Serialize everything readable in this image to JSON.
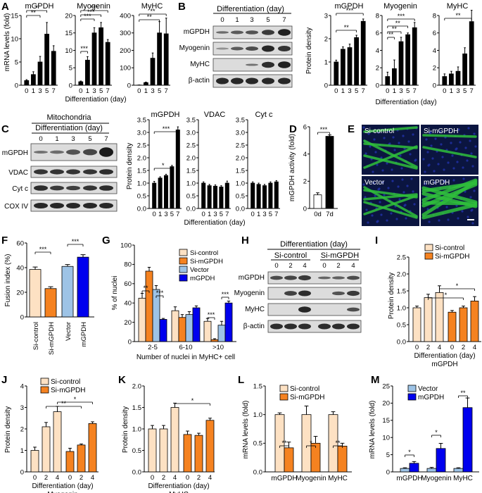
{
  "colors": {
    "black_bar": "#000000",
    "si_control": "#fde1c3",
    "si_mgpdh": "#f58220",
    "vector": "#9dc3e6",
    "mgpdh_over": "#0000ee",
    "micro_green": "#2fbf3b",
    "micro_blue": "#1f2f9f"
  },
  "panels": [
    {
      "id": "A",
      "letter": "A",
      "xlabel": "Differentiation (day)",
      "ylabel": "mRNA levels (fold)",
      "titles": [
        "mGPDH",
        "Myogenin",
        "MyHC"
      ],
      "yticks": [
        [
          "0",
          "5",
          "10",
          "15"
        ],
        [
          "0",
          "5",
          "10",
          "15",
          "20"
        ],
        [
          "0",
          "100",
          "200",
          "300",
          "400"
        ]
      ],
      "xticks": [
        "0",
        "1",
        "3",
        "5",
        "7"
      ],
      "sig": [
        [
          "*",
          "**"
        ],
        [
          "***",
          "***",
          "***"
        ],
        [
          "**",
          "**"
        ]
      ]
    },
    {
      "id": "B",
      "letter": "B",
      "blot_title": "Differentiation (day)",
      "days": [
        "0",
        "1",
        "3",
        "5",
        "7"
      ],
      "blots": [
        "mGPDH",
        "Myogenin",
        "MyHC",
        "β-actin"
      ],
      "xlabel": "Differentiation (day)",
      "ylabel": "Protein density",
      "titles": [
        "mGPDH",
        "Myogenin",
        "MyHC"
      ],
      "yticks": [
        [
          "0",
          "1",
          "2",
          "3"
        ],
        [
          "0",
          "2",
          "4",
          "6",
          "8"
        ],
        [
          "0",
          "2",
          "4",
          "6",
          "8"
        ]
      ],
      "xticks": [
        "0",
        "1",
        "3",
        "5",
        "7"
      ],
      "sig": [
        [
          "***",
          "**"
        ],
        [
          "***",
          "**",
          "**",
          "**"
        ],
        [
          "**"
        ]
      ]
    },
    {
      "id": "C",
      "letter": "C",
      "blot_title": "Mitochondria",
      "blot_subtitle": "Differentiation (day)",
      "days": [
        "0",
        "1",
        "3",
        "5",
        "7"
      ],
      "blots": [
        "mGPDH",
        "VDAC",
        "Cyt c",
        "COX IV"
      ],
      "xlabel": "Differentiation (day)",
      "ylabel": "Protein density",
      "titles": [
        "mGPDH",
        "VDAC",
        "Cyt c"
      ],
      "yticks": [
        [
          "0.0",
          "0.5",
          "1.0",
          "1.5",
          "2.0",
          "2.5",
          "3.0",
          "3.5"
        ]
      ],
      "xticks": [
        "0",
        "1",
        "3",
        "5",
        "7"
      ],
      "sig": [
        [
          "***",
          "*"
        ]
      ]
    },
    {
      "id": "D",
      "letter": "D",
      "ylabel": "mGPDH activity (fold)",
      "yticks": [
        "0",
        "2",
        "4",
        "6"
      ],
      "xticks": [
        "0d",
        "7d"
      ],
      "sig": "***"
    },
    {
      "id": "E",
      "letter": "E",
      "labels": [
        "Si-control",
        "Si-mGPDH",
        "Vector",
        "mGPDH"
      ]
    },
    {
      "id": "F",
      "letter": "F",
      "ylabel": "Fusion index (%)",
      "yticks": [
        "0",
        "20",
        "40",
        "60"
      ],
      "xticks": [
        "Si-control",
        "Si-mGPDH",
        "Vector",
        "mGPDH"
      ],
      "sig": [
        "***",
        "***"
      ]
    },
    {
      "id": "G",
      "letter": "G",
      "ylabel": "% of nuclei",
      "xlabel": "Number of nuclei in MyHC+ cell",
      "yticks": [
        "0",
        "20",
        "40",
        "60",
        "80",
        "100"
      ],
      "xticks": [
        "2-5",
        "6-10",
        ">10"
      ],
      "legend": [
        "Si-control",
        "Si-mGPDH",
        "Vector",
        "mGPDH"
      ],
      "sig": [
        "**",
        "***",
        "***",
        "***"
      ]
    },
    {
      "id": "H",
      "letter": "H",
      "blot_title": "Differentiation (day)",
      "groups": [
        "Si-control",
        "Si-mGPDH"
      ],
      "days": [
        "0",
        "2",
        "4",
        "0",
        "2",
        "4"
      ],
      "blots": [
        "mGPDH",
        "Myogenin",
        "MyHC",
        "β-actin"
      ]
    },
    {
      "id": "I",
      "letter": "I",
      "ylabel": "Protein density",
      "xlabel": "Differentiation (day)",
      "sublabel": "mGPDH",
      "yticks": [
        "0.0",
        "0.5",
        "1.0",
        "1.5",
        "2.0",
        "2.5"
      ],
      "xticks": [
        "0",
        "2",
        "4",
        "0",
        "2",
        "4"
      ],
      "legend": [
        "Si-control",
        "Si-mGPDH"
      ],
      "sig": [
        "*",
        "*"
      ]
    },
    {
      "id": "J",
      "letter": "J",
      "ylabel": "Protein density",
      "xlabel": "Differentiation (day)",
      "sublabel": "Myogenin",
      "yticks": [
        "0",
        "1",
        "2",
        "3",
        "4"
      ],
      "xticks": [
        "0",
        "2",
        "4",
        "0",
        "2",
        "4"
      ],
      "legend": [
        "Si-control",
        "Si-mGPDH"
      ],
      "sig": [
        "**",
        "*"
      ]
    },
    {
      "id": "K",
      "letter": "K",
      "ylabel": "Protein density",
      "xlabel": "Differentiation (day)",
      "sublabel": "MyHC",
      "yticks": [
        "0.0",
        "0.5",
        "1.0",
        "1.5",
        "2.0"
      ],
      "xticks": [
        "0",
        "2",
        "4",
        "0",
        "2",
        "4"
      ],
      "sig": [
        "*"
      ]
    },
    {
      "id": "L",
      "letter": "L",
      "ylabel": "mRNA levels (fold)",
      "yticks": [
        "0.0",
        "0.5",
        "1.0",
        "1.5"
      ],
      "xticks": [
        "mGPDH",
        "Myogenin",
        "MyHC"
      ],
      "legend": [
        "Si-control",
        "Si-mGPDH"
      ],
      "sig": [
        "**",
        "*",
        "**"
      ]
    },
    {
      "id": "M",
      "letter": "M",
      "ylabel": "mRNA levels (fold)",
      "yticks": [
        "0",
        "5",
        "10",
        "15",
        "20",
        "25"
      ],
      "xticks": [
        "mGPDH",
        "Myogenin",
        "MyHC"
      ],
      "legend": [
        "Vector",
        "mGPDH"
      ],
      "sig": [
        "*",
        "*",
        "**"
      ]
    }
  ],
  "chart_data": [
    {
      "id": "A1",
      "type": "bar",
      "title": "mGPDH",
      "categories": [
        "0",
        "1",
        "3",
        "5",
        "7"
      ],
      "values": [
        1,
        2.3,
        5,
        11,
        7.3
      ],
      "err": [
        0.2,
        0.6,
        1.2,
        2.5,
        1.2
      ],
      "ylim": [
        0,
        15
      ]
    },
    {
      "id": "A2",
      "type": "bar",
      "title": "Myogenin",
      "categories": [
        "0",
        "1",
        "3",
        "5",
        "7"
      ],
      "values": [
        1,
        7.2,
        15,
        16.5,
        12.3
      ],
      "err": [
        0.2,
        1,
        1.5,
        1.5,
        0.8
      ],
      "ylim": [
        0,
        20
      ]
    },
    {
      "id": "A3",
      "type": "bar",
      "title": "MyHC",
      "categories": [
        "0",
        "1",
        "3",
        "5",
        "7"
      ],
      "values": [
        1,
        15,
        155,
        300,
        295
      ],
      "err": [
        0.5,
        3,
        30,
        65,
        90
      ],
      "ylim": [
        0,
        400
      ]
    },
    {
      "id": "B1",
      "type": "bar",
      "title": "mGPDH",
      "categories": [
        "0",
        "1",
        "3",
        "5",
        "7"
      ],
      "values": [
        1,
        1.55,
        1.62,
        2.05,
        2.75
      ],
      "err": [
        0.08,
        0.1,
        0.15,
        0.1,
        0.1
      ],
      "ylim": [
        0,
        3
      ]
    },
    {
      "id": "B2",
      "type": "bar",
      "title": "Myogenin",
      "categories": [
        "0",
        "1",
        "3",
        "5",
        "7"
      ],
      "values": [
        1,
        1.9,
        5,
        5.8,
        6.6
      ],
      "err": [
        0.5,
        1,
        0.5,
        0.2,
        0.6
      ],
      "ylim": [
        0,
        8
      ]
    },
    {
      "id": "B3",
      "type": "bar",
      "title": "MyHC",
      "categories": [
        "0",
        "1",
        "3",
        "5",
        "7"
      ],
      "values": [
        1,
        1.3,
        1.6,
        3.6,
        7.3
      ],
      "err": [
        0.3,
        0.3,
        0.5,
        0.7,
        1.3
      ],
      "ylim": [
        0,
        8
      ]
    },
    {
      "id": "C1",
      "type": "bar",
      "title": "mGPDH",
      "categories": [
        "0",
        "1",
        "3",
        "5",
        "7"
      ],
      "values": [
        1,
        1.2,
        1.3,
        1.65,
        3.1
      ],
      "err": [
        0.07,
        0.05,
        0.05,
        0.05,
        0.12
      ],
      "ylim": [
        0,
        3.5
      ]
    },
    {
      "id": "C2",
      "type": "bar",
      "title": "VDAC",
      "categories": [
        "0",
        "1",
        "3",
        "5",
        "7"
      ],
      "values": [
        1,
        0.9,
        0.88,
        0.85,
        1
      ],
      "err": [
        0.05,
        0.05,
        0.05,
        0.05,
        0.08
      ],
      "ylim": [
        0,
        3.5
      ]
    },
    {
      "id": "C3",
      "type": "bar",
      "title": "Cyt c",
      "categories": [
        "0",
        "1",
        "3",
        "5",
        "7"
      ],
      "values": [
        1,
        0.95,
        0.9,
        1,
        1.05
      ],
      "err": [
        0.05,
        0.05,
        0.05,
        0.05,
        0.05
      ],
      "ylim": [
        0,
        3.5
      ]
    },
    {
      "id": "D",
      "type": "bar",
      "categories": [
        "0d",
        "7d"
      ],
      "values": [
        1,
        5.3
      ],
      "err": [
        0.15,
        0.1
      ],
      "ylim": [
        0,
        6
      ]
    },
    {
      "id": "F",
      "type": "bar",
      "categories": [
        "Si-control",
        "Si-mGPDH",
        "Vector",
        "mGPDH"
      ],
      "values": [
        38.5,
        23,
        41,
        48.5
      ],
      "err": [
        2,
        1.5,
        1.5,
        2
      ],
      "ylim": [
        0,
        60
      ]
    },
    {
      "id": "G",
      "type": "bar",
      "categories": [
        "2-5",
        "6-10",
        ">10"
      ],
      "series": [
        {
          "name": "Si-control",
          "values": [
            45,
            32,
            21
          ],
          "err": [
            5,
            4,
            3
          ]
        },
        {
          "name": "Si-mGPDH",
          "values": [
            73,
            25,
            2
          ],
          "err": [
            4,
            3,
            1
          ]
        },
        {
          "name": "Vector",
          "values": [
            54,
            28,
            17
          ],
          "err": [
            4,
            3,
            4
          ]
        },
        {
          "name": "mGPDH",
          "values": [
            23,
            35,
            40
          ],
          "err": [
            1,
            2,
            2
          ]
        }
      ],
      "ylim": [
        0,
        100
      ]
    },
    {
      "id": "I",
      "type": "bar",
      "categories": [
        "0",
        "2",
        "4",
        "0",
        "2",
        "4"
      ],
      "values": [
        1,
        1.3,
        1.45,
        0.87,
        1,
        1.2
      ],
      "err": [
        0.05,
        0.1,
        0.2,
        0.05,
        0.05,
        0.13
      ],
      "ylim": [
        0,
        2.5
      ]
    },
    {
      "id": "J",
      "type": "bar",
      "categories": [
        "0",
        "2",
        "4",
        "0",
        "2",
        "4"
      ],
      "values": [
        1,
        2.1,
        2.8,
        0.95,
        1.25,
        2.25
      ],
      "err": [
        0.15,
        0.2,
        0.25,
        0.15,
        0.05,
        0.08
      ],
      "ylim": [
        0,
        4
      ]
    },
    {
      "id": "K",
      "type": "bar",
      "categories": [
        "0",
        "2",
        "4",
        "0",
        "2",
        "4"
      ],
      "values": [
        1,
        1,
        1.5,
        0.87,
        0.85,
        1.2
      ],
      "err": [
        0.08,
        0.08,
        0.1,
        0.08,
        0.05,
        0.05
      ],
      "ylim": [
        0,
        2
      ]
    },
    {
      "id": "L",
      "type": "bar",
      "categories": [
        "mGPDH",
        "Myogenin",
        "MyHC"
      ],
      "series": [
        {
          "name": "Si-control",
          "values": [
            1,
            1,
            1
          ],
          "err": [
            0.03,
            0.15,
            0.05
          ]
        },
        {
          "name": "Si-mGPDH",
          "values": [
            0.42,
            0.5,
            0.45
          ],
          "err": [
            0.1,
            0.12,
            0.05
          ]
        }
      ],
      "ylim": [
        0,
        1.5
      ]
    },
    {
      "id": "M",
      "type": "bar",
      "categories": [
        "mGPDH",
        "Myogenin",
        "MyHC"
      ],
      "series": [
        {
          "name": "Vector",
          "values": [
            1,
            1,
            1
          ],
          "err": [
            0.2,
            0.3,
            0.2
          ]
        },
        {
          "name": "mGPDH",
          "values": [
            2.5,
            6.8,
            18.7
          ],
          "err": [
            0.5,
            1.5,
            2.8
          ]
        }
      ],
      "ylim": [
        0,
        25
      ]
    }
  ]
}
